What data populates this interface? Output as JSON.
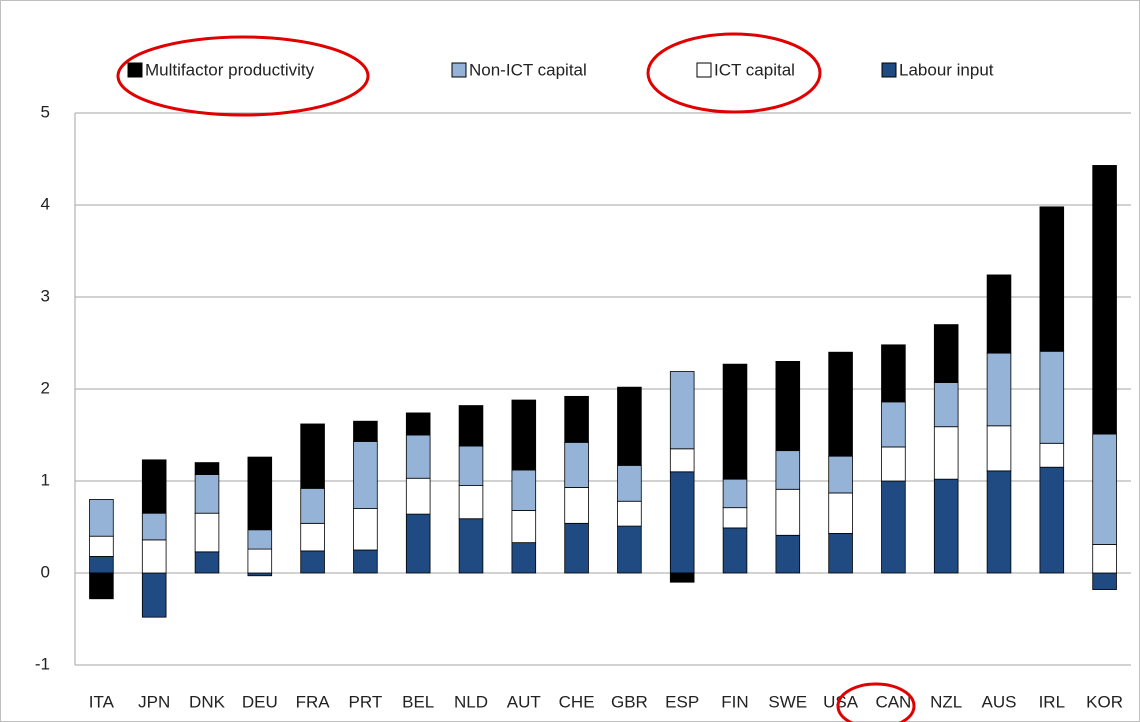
{
  "chart_data": {
    "type": "stacked_bar",
    "categories": [
      "ITA",
      "JPN",
      "DNK",
      "DEU",
      "FRA",
      "PRT",
      "BEL",
      "NLD",
      "AUT",
      "CHE",
      "GBR",
      "ESP",
      "FIN",
      "SWE",
      "USA",
      "CAN",
      "NZL",
      "AUS",
      "IRL",
      "KOR"
    ],
    "series": [
      {
        "name": "Multifactor productivity",
        "color": "#000000",
        "values": [
          -0.28,
          0.58,
          0.13,
          0.79,
          0.7,
          0.22,
          0.24,
          0.44,
          0.76,
          0.5,
          0.85,
          -0.1,
          1.25,
          0.97,
          1.13,
          0.62,
          0.63,
          0.85,
          1.57,
          2.92
        ]
      },
      {
        "name": "Non-ICT capital",
        "color": "#95b3d7",
        "values": [
          0.4,
          0.29,
          0.42,
          0.21,
          0.38,
          0.73,
          0.47,
          0.43,
          0.44,
          0.49,
          0.39,
          0.84,
          0.31,
          0.42,
          0.4,
          0.49,
          0.48,
          0.79,
          1.0,
          1.2
        ]
      },
      {
        "name": "ICT capital",
        "color": "#ffffff",
        "values": [
          0.22,
          0.36,
          0.42,
          0.26,
          0.3,
          0.45,
          0.39,
          0.36,
          0.35,
          0.39,
          0.27,
          0.25,
          0.22,
          0.5,
          0.44,
          0.37,
          0.57,
          0.49,
          0.26,
          0.31
        ]
      },
      {
        "name": "Labour input",
        "color": "#1f4a82",
        "values": [
          0.18,
          -0.48,
          0.23,
          -0.03,
          0.24,
          0.25,
          0.64,
          0.59,
          0.33,
          0.54,
          0.51,
          1.1,
          0.49,
          0.41,
          0.43,
          1.0,
          1.02,
          1.11,
          1.15,
          -0.18
        ]
      }
    ],
    "ylim": [
      -1,
      5
    ],
    "yticks": [
      -1,
      0,
      1,
      2,
      3,
      4,
      5
    ],
    "grid": true
  }
}
